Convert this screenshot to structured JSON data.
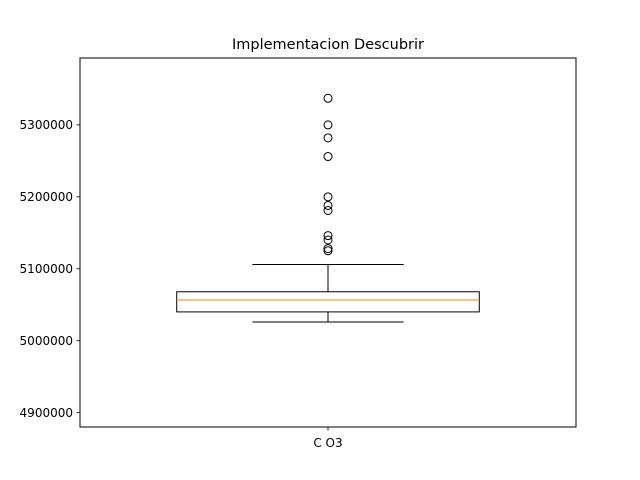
{
  "chart_data": {
    "type": "box",
    "title": "Implementacion Descubrir",
    "xlabel": "",
    "ylabel": "",
    "categories": [
      "C O3"
    ],
    "ylim": [
      4880000,
      5393000
    ],
    "yticks": [
      4900000,
      5000000,
      5100000,
      5200000,
      5300000
    ],
    "ytick_labels": [
      "4900000",
      "5000000",
      "5100000",
      "5200000",
      "5300000"
    ],
    "boxes": [
      {
        "category": "C O3",
        "whisker_low": 5026000,
        "q1": 5040000,
        "median": 5056500,
        "q3": 5068000,
        "whisker_high": 5106000,
        "outliers": [
          5337000,
          5300000,
          5282000,
          5256000,
          5200000,
          5188000,
          5181000,
          5146000,
          5140000,
          5128000,
          5125000
        ]
      }
    ],
    "grid": false,
    "colors": {
      "box": "#000000",
      "median": "#ff7f0e",
      "outlier": "#000000"
    }
  }
}
